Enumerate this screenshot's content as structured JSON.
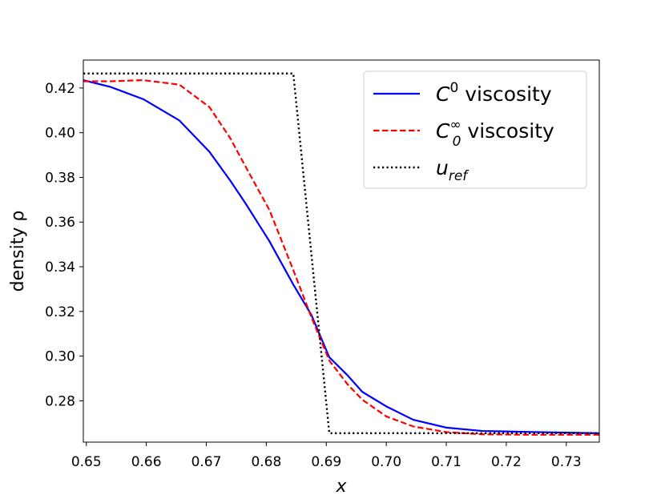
{
  "chart_data": {
    "type": "line",
    "title": "",
    "xlabel": "x",
    "ylabel": "density ρ",
    "xlim": [
      0.6495,
      0.7355
    ],
    "ylim": [
      0.2615,
      0.4325
    ],
    "x_ticks": [
      "0.65",
      "0.66",
      "0.67",
      "0.68",
      "0.69",
      "0.70",
      "0.71",
      "0.72",
      "0.73"
    ],
    "y_ticks": [
      "0.28",
      "0.30",
      "0.32",
      "0.34",
      "0.36",
      "0.38",
      "0.40",
      "0.42"
    ],
    "grid": false,
    "legend_position": "top-right",
    "series": [
      {
        "name": "C0 viscosity",
        "legend": {
          "base": "C",
          "sup": "0",
          "sub": "",
          "suffix": " viscosity"
        },
        "color": "#0000ff",
        "style": "solid",
        "x": [
          0.6495,
          0.654,
          0.6595,
          0.6655,
          0.6705,
          0.674,
          0.6765,
          0.6805,
          0.6845,
          0.6875,
          0.6905,
          0.6935,
          0.696,
          0.7,
          0.7045,
          0.71,
          0.716,
          0.725,
          0.7355
        ],
        "y": [
          0.4235,
          0.4205,
          0.415,
          0.4055,
          0.3915,
          0.3785,
          0.3685,
          0.3515,
          0.332,
          0.3185,
          0.2995,
          0.2915,
          0.284,
          0.2775,
          0.2715,
          0.268,
          0.2665,
          0.266,
          0.2655
        ]
      },
      {
        "name": "C0∞ viscosity",
        "legend": {
          "base": "C",
          "sup": "∞",
          "sub": "0",
          "suffix": " viscosity"
        },
        "color": "#ff0000",
        "style": "dashed",
        "x": [
          0.6495,
          0.654,
          0.6595,
          0.6655,
          0.6705,
          0.674,
          0.6765,
          0.6805,
          0.6845,
          0.6875,
          0.6905,
          0.6935,
          0.696,
          0.7,
          0.7045,
          0.71,
          0.716,
          0.725,
          0.7355
        ],
        "y": [
          0.423,
          0.423,
          0.4235,
          0.4215,
          0.4115,
          0.3975,
          0.385,
          0.3655,
          0.3385,
          0.3175,
          0.298,
          0.2875,
          0.2805,
          0.273,
          0.2685,
          0.266,
          0.265,
          0.2648,
          0.2648
        ]
      },
      {
        "name": "u_ref",
        "legend": {
          "base": "u",
          "sup": "",
          "sub": "ref",
          "suffix": ""
        },
        "color": "#000000",
        "style": "dotted",
        "x": [
          0.6495,
          0.6845,
          0.6905,
          0.7355
        ],
        "y": [
          0.4265,
          0.4265,
          0.2655,
          0.2655
        ]
      }
    ]
  }
}
